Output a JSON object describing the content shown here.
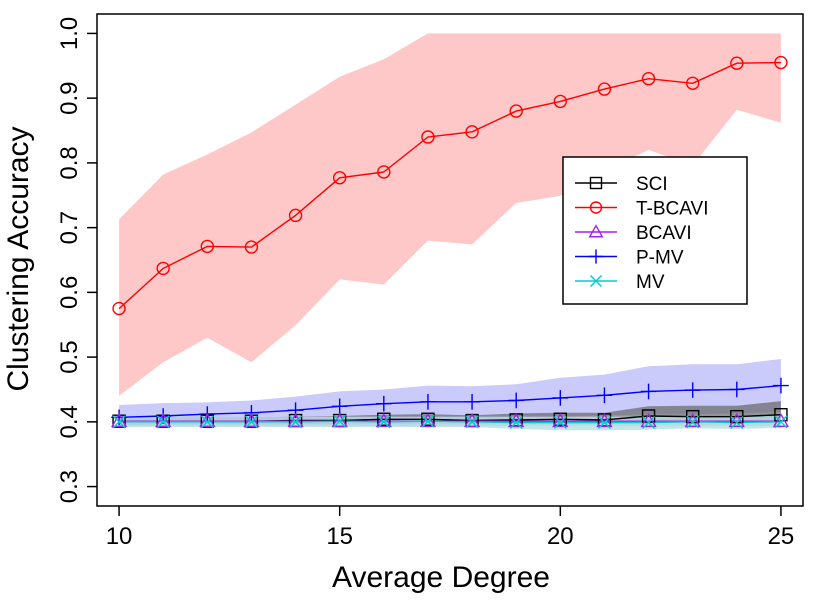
{
  "chart_data": {
    "type": "line",
    "title": "",
    "xlabel": "Average Degree",
    "ylabel": "Clustering Accuracy",
    "xlim": [
      9.5,
      25.5
    ],
    "ylim": [
      0.27,
      1.03
    ],
    "x_ticks": [
      10,
      15,
      20,
      25
    ],
    "y_ticks": [
      0.3,
      0.4,
      0.5,
      0.6,
      0.7,
      0.8,
      0.9,
      1.0
    ],
    "y_tick_labels": [
      "0.3",
      "0.4",
      "0.5",
      "0.6",
      "0.7",
      "0.8",
      "0.9",
      "1.0"
    ],
    "legend_position": "right-center",
    "x": [
      10,
      11,
      12,
      13,
      14,
      15,
      16,
      17,
      18,
      19,
      20,
      21,
      22,
      23,
      24,
      25
    ],
    "series": [
      {
        "name": "SCI",
        "color": "#000000",
        "marker": "square",
        "values": [
          0.401,
          0.401,
          0.401,
          0.401,
          0.402,
          0.402,
          0.404,
          0.404,
          0.402,
          0.403,
          0.404,
          0.403,
          0.409,
          0.408,
          0.408,
          0.411
        ],
        "band_lower": [
          0.396,
          0.396,
          0.396,
          0.396,
          0.396,
          0.397,
          0.397,
          0.397,
          0.397,
          0.397,
          0.397,
          0.397,
          0.398,
          0.398,
          0.398,
          0.398
        ],
        "band_upper": [
          0.406,
          0.407,
          0.407,
          0.407,
          0.408,
          0.409,
          0.411,
          0.412,
          0.41,
          0.413,
          0.414,
          0.414,
          0.424,
          0.425,
          0.425,
          0.432
        ],
        "band_color": "#666666"
      },
      {
        "name": "T-BCAVI",
        "color": "#ff0000",
        "marker": "circle",
        "values": [
          0.575,
          0.637,
          0.671,
          0.67,
          0.719,
          0.777,
          0.786,
          0.84,
          0.848,
          0.88,
          0.895,
          0.914,
          0.93,
          0.923,
          0.954,
          0.955
        ],
        "band_lower": [
          0.44,
          0.492,
          0.53,
          0.492,
          0.549,
          0.62,
          0.612,
          0.68,
          0.674,
          0.738,
          0.749,
          0.788,
          0.82,
          0.796,
          0.882,
          0.862
        ],
        "band_upper": [
          0.713,
          0.782,
          0.813,
          0.847,
          0.89,
          0.933,
          0.96,
          1.0,
          1.0,
          1.0,
          1.0,
          1.0,
          1.0,
          1.0,
          1.0,
          1.0
        ],
        "band_color": "#ffc8c8"
      },
      {
        "name": "BCAVI",
        "color": "#a020f0",
        "marker": "triangle",
        "values": [
          0.401,
          0.401,
          0.401,
          0.401,
          0.401,
          0.401,
          0.401,
          0.401,
          0.401,
          0.401,
          0.401,
          0.401,
          0.401,
          0.401,
          0.401,
          0.401
        ],
        "band_lower": [
          0.394,
          0.394,
          0.394,
          0.394,
          0.394,
          0.394,
          0.394,
          0.394,
          0.394,
          0.394,
          0.394,
          0.394,
          0.394,
          0.394,
          0.394,
          0.394
        ],
        "band_upper": [
          0.408,
          0.408,
          0.408,
          0.408,
          0.408,
          0.408,
          0.408,
          0.408,
          0.408,
          0.408,
          0.408,
          0.408,
          0.408,
          0.408,
          0.408,
          0.408
        ],
        "band_color": "#d6c8f5"
      },
      {
        "name": "P-MV",
        "color": "#0000ff",
        "marker": "plus",
        "values": [
          0.407,
          0.409,
          0.412,
          0.414,
          0.418,
          0.424,
          0.428,
          0.431,
          0.431,
          0.433,
          0.437,
          0.441,
          0.447,
          0.449,
          0.45,
          0.456
        ],
        "band_lower": [
          0.395,
          0.396,
          0.397,
          0.398,
          0.4,
          0.402,
          0.404,
          0.406,
          0.406,
          0.407,
          0.408,
          0.41,
          0.412,
          0.412,
          0.413,
          0.415
        ],
        "band_upper": [
          0.426,
          0.429,
          0.43,
          0.433,
          0.439,
          0.447,
          0.45,
          0.456,
          0.455,
          0.458,
          0.468,
          0.473,
          0.486,
          0.489,
          0.489,
          0.497
        ],
        "band_color": "#b4b4fa"
      },
      {
        "name": "MV",
        "color": "#00cdcd",
        "marker": "x",
        "values": [
          0.4,
          0.4,
          0.4,
          0.4,
          0.4,
          0.401,
          0.4,
          0.401,
          0.4,
          0.399,
          0.399,
          0.399,
          0.399,
          0.4,
          0.399,
          0.4
        ],
        "band_lower": [
          0.392,
          0.392,
          0.392,
          0.392,
          0.392,
          0.392,
          0.392,
          0.392,
          0.392,
          0.389,
          0.387,
          0.387,
          0.388,
          0.39,
          0.389,
          0.391
        ],
        "band_upper": [
          0.407,
          0.407,
          0.407,
          0.407,
          0.407,
          0.408,
          0.408,
          0.408,
          0.408,
          0.408,
          0.408,
          0.408,
          0.408,
          0.409,
          0.409,
          0.409
        ],
        "band_color": "#a8dada"
      }
    ]
  }
}
